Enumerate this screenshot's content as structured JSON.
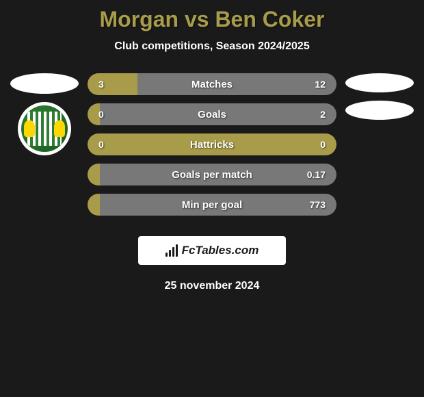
{
  "header": {
    "title": "Morgan vs Ben Coker",
    "subtitle": "Club competitions, Season 2024/2025"
  },
  "colors": {
    "left_bar": "#a89c4a",
    "right_bar": "#787878",
    "title_color": "#a89c4a",
    "background": "#1a1a1a"
  },
  "stats": [
    {
      "label": "Matches",
      "left_value": "3",
      "right_value": "12",
      "left_pct": 20,
      "right_pct": 80
    },
    {
      "label": "Goals",
      "left_value": "0",
      "right_value": "2",
      "left_pct": 5,
      "right_pct": 95
    },
    {
      "label": "Hattricks",
      "left_value": "0",
      "right_value": "0",
      "left_pct": 100,
      "right_pct": 0
    },
    {
      "label": "Goals per match",
      "left_value": "",
      "right_value": "0.17",
      "left_pct": 5,
      "right_pct": 95
    },
    {
      "label": "Min per goal",
      "left_value": "",
      "right_value": "773",
      "left_pct": 5,
      "right_pct": 95
    }
  ],
  "footer": {
    "branding": "FcTables.com",
    "date": "25 november 2024"
  }
}
